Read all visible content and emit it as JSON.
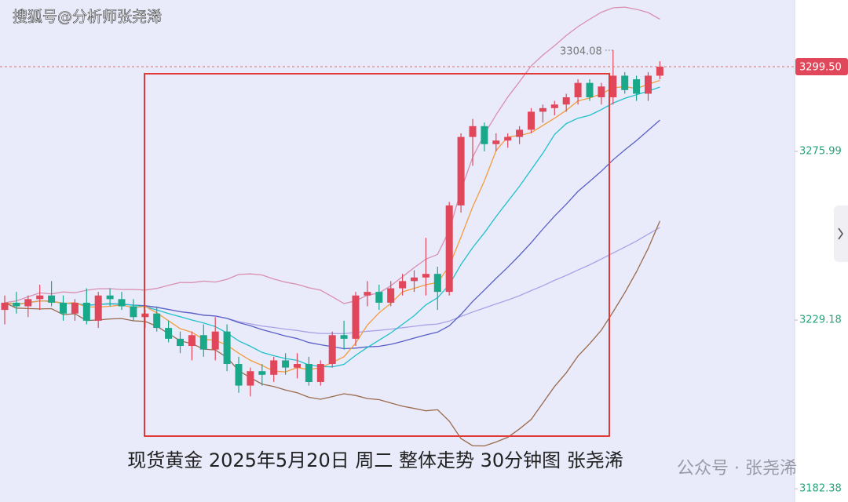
{
  "chart_data": {
    "type": "candlestick",
    "watermark": "搜狐号@分析师张尧浠",
    "caption": "现货黄金 2025年5月20日 周二 整体走势 30分钟图 张尧浠",
    "source_mark": "公众号 · 张尧浠",
    "open": [
      3232,
      3234,
      3233,
      3235,
      3236,
      3234,
      3231,
      3234,
      3229,
      3236,
      3235,
      3233,
      3230,
      3231,
      3227,
      3224,
      3222,
      3225,
      3221,
      3226,
      3217,
      3211,
      3215,
      3214,
      3218,
      3216,
      3217,
      3212,
      3217,
      3225,
      3224,
      3236,
      3237,
      3234,
      3238,
      3240,
      3241,
      3242,
      3237,
      3261,
      3280,
      3283,
      3278,
      3279,
      3280,
      3282,
      3287,
      3288,
      3289,
      3291,
      3295,
      3291,
      3291,
      3297,
      3296,
      3292,
      3297
    ],
    "high": [
      3236,
      3237,
      3236,
      3239,
      3240,
      3236,
      3235,
      3238,
      3237,
      3238,
      3237,
      3235,
      3232,
      3233,
      3229,
      3226,
      3226,
      3228,
      3230,
      3228,
      3219,
      3216,
      3217,
      3219,
      3220,
      3220,
      3219,
      3218,
      3226,
      3229,
      3237,
      3240,
      3239,
      3240,
      3242,
      3243,
      3252,
      3244,
      3262,
      3281,
      3285,
      3284,
      3281,
      3281,
      3283,
      3288,
      3289,
      3290,
      3292,
      3296,
      3296,
      3295,
      3304.08,
      3298,
      3297,
      3298,
      3301
    ],
    "low": [
      3228,
      3231,
      3230,
      3232,
      3233,
      3229,
      3229,
      3228,
      3227,
      3233,
      3232,
      3229,
      3227,
      3226,
      3223,
      3220,
      3218,
      3219,
      3218,
      3215,
      3209,
      3208,
      3211,
      3212,
      3214,
      3213,
      3211,
      3211,
      3216,
      3221,
      3222,
      3233,
      3232,
      3233,
      3236,
      3237,
      3236,
      3232,
      3236,
      3259,
      3272,
      3276,
      3276,
      3277,
      3278,
      3281,
      3284,
      3286,
      3287,
      3289,
      3290,
      3289,
      3289,
      3292,
      3290,
      3290,
      3296
    ],
    "close": [
      3234,
      3233,
      3235,
      3236,
      3234,
      3231,
      3234,
      3229,
      3236,
      3235,
      3233,
      3230,
      3231,
      3227,
      3224,
      3222,
      3225,
      3221,
      3226,
      3217,
      3211,
      3215,
      3214,
      3218,
      3216,
      3217,
      3212,
      3217,
      3225,
      3224,
      3236,
      3237,
      3234,
      3238,
      3240,
      3241,
      3242,
      3237,
      3261,
      3280,
      3283,
      3278,
      3279,
      3280,
      3282,
      3287,
      3288,
      3289,
      3291,
      3295,
      3291,
      3294,
      3297,
      3293,
      3292,
      3297,
      3299.5
    ],
    "up_color": "#e0475a",
    "down_color": "#1aa88a",
    "max_index": 52,
    "last_price": {
      "value": 3299.5,
      "label": "3299.50"
    },
    "ylim": [
      3178.7,
      3318.0
    ],
    "yticks": [
      3182.38,
      3229.18,
      3275.99
    ]
  }
}
